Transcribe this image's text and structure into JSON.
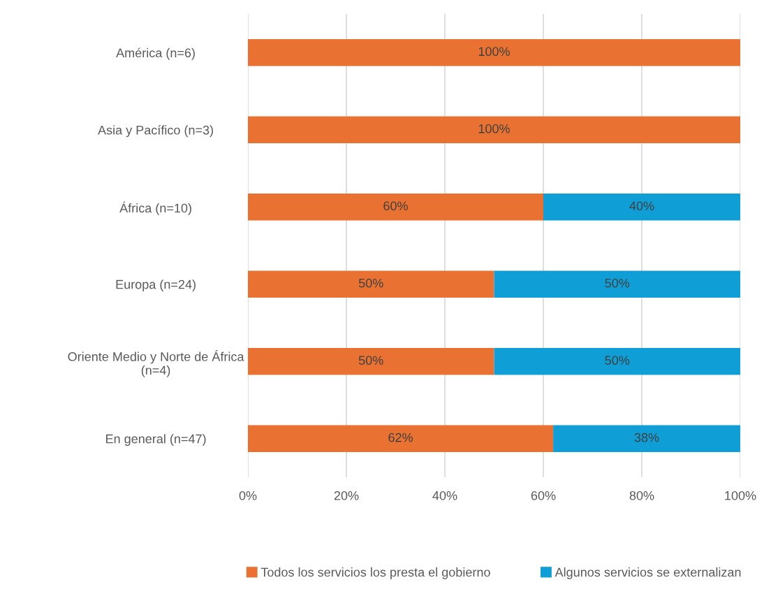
{
  "chart_data": {
    "type": "bar",
    "orientation": "horizontal",
    "stacked": true,
    "categories": [
      "América (n=6)",
      "Asia y Pacífico (n=3)",
      "África (n=10)",
      "Europa (n=24)",
      "Oriente Medio y Norte de África\n(n=4)",
      "En general (n=47)"
    ],
    "series": [
      {
        "name": "Todos los servicios los presta el gobierno",
        "color": "#e97132",
        "values": [
          100,
          100,
          60,
          50,
          50,
          62
        ],
        "value_labels": [
          "100%",
          "100%",
          "60%",
          "50%",
          "50%",
          "62%"
        ]
      },
      {
        "name": "Algunos servicios se externalizan",
        "color": "#0f9ed5",
        "values": [
          0,
          0,
          40,
          50,
          50,
          38
        ],
        "value_labels": [
          null,
          null,
          "40%",
          "50%",
          "50%",
          "38%"
        ]
      }
    ],
    "xlim": [
      0,
      100
    ],
    "xticks": [
      {
        "value": 0,
        "label": "0%"
      },
      {
        "value": 20,
        "label": "20%"
      },
      {
        "value": 40,
        "label": "40%"
      },
      {
        "value": 60,
        "label": "60%"
      },
      {
        "value": 80,
        "label": "80%"
      },
      {
        "value": 100,
        "label": "100%"
      }
    ],
    "grid": "x",
    "legend": "bottom"
  }
}
